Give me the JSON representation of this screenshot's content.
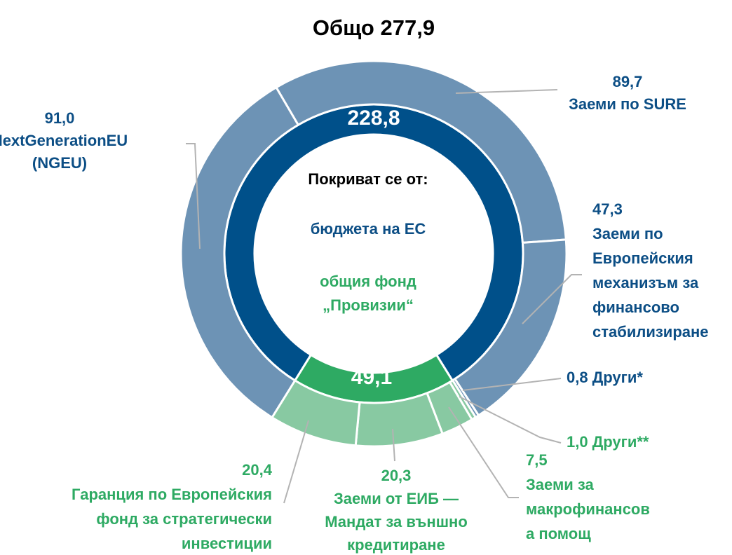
{
  "chart_data": {
    "type": "donut",
    "title": "Общо 277,9",
    "center_text": [
      "Покриват се от:",
      "бюджета на ЕС",
      "общия фонд",
      "„Провизии“"
    ],
    "inner": {
      "values": [
        228.8,
        49.1
      ],
      "value_labels": [
        "228,8",
        "49,1"
      ],
      "colors": [
        "#00508a",
        "#2eaa63"
      ]
    },
    "outer": {
      "values": [
        91.0,
        89.7,
        47.3,
        0.8,
        1.0,
        7.5,
        20.3,
        20.4
      ],
      "value_labels": [
        "91,0",
        "89,7",
        "47,3",
        "0,8",
        "1,0",
        "7,5",
        "20,3",
        "20,4"
      ],
      "names": [
        [
          "NextGenerationEU",
          "(NGEU)"
        ],
        [
          "Заеми по SURE"
        ],
        [
          "Заеми по",
          "Европейския",
          "механизъм за",
          "финансово",
          "стабилизиране"
        ],
        [
          "Други*"
        ],
        [
          "Други**"
        ],
        [
          "Заеми за",
          "макрофинансов",
          "а помощ"
        ],
        [
          "Заеми от ЕИБ —",
          "Мандат за външно",
          "кредитиране"
        ],
        [
          "Гаранция по Европейския",
          "фонд за стратегически",
          "инвестиции"
        ]
      ],
      "colors": [
        "#6d93b5",
        "#6d93b5",
        "#6d93b5",
        "#6d93b5",
        "#88c9a2",
        "#88c9a2",
        "#88c9a2",
        "#88c9a2"
      ],
      "label_colors": [
        "#0c4e85",
        "#0c4e85",
        "#0c4e85",
        "#0c4e85",
        "#2eaa63",
        "#2eaa63",
        "#2eaa63",
        "#2eaa63"
      ]
    }
  }
}
